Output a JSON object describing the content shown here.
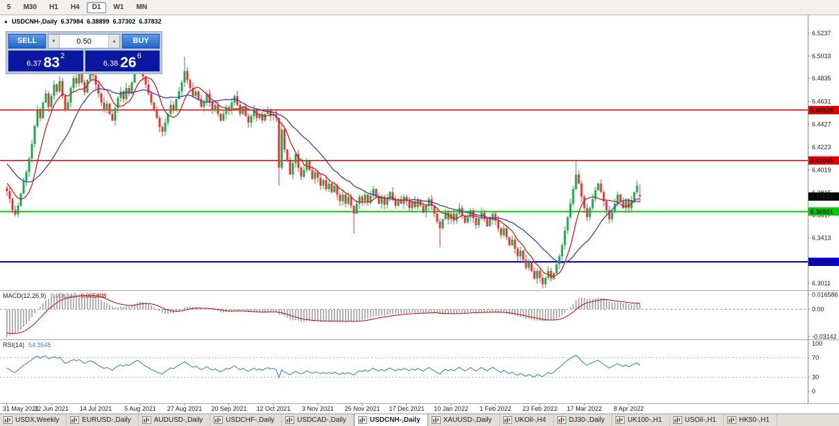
{
  "toolbar": {
    "timeframes": [
      {
        "label": "5",
        "active": false
      },
      {
        "label": "M30",
        "active": false
      },
      {
        "label": "H1",
        "active": false
      },
      {
        "label": "H4",
        "active": false
      },
      {
        "label": "D1",
        "active": true
      },
      {
        "label": "W1",
        "active": false
      },
      {
        "label": "MN",
        "active": false
      }
    ]
  },
  "chart_header": {
    "collapse_icon": "▲",
    "symbol": "USDCNH-,Daily",
    "open": "6.37984",
    "high": "6.38899",
    "low": "6.37302",
    "close": "6.37832"
  },
  "trade_panel": {
    "sell_label": "SELL",
    "buy_label": "BUY",
    "volume": "0.50",
    "spin_down_icon": "▼",
    "spin_up_icon": "▲",
    "sell_price": {
      "small": "6.37",
      "big": "83",
      "sup": "2"
    },
    "buy_price": {
      "small": "6.38",
      "big": "26",
      "sup": "6"
    }
  },
  "price_axis": {
    "ticks": [
      6.5237,
      6.5033,
      6.4835,
      6.4631,
      6.4427,
      6.4223,
      6.4019,
      6.3815,
      6.3617,
      6.3413,
      6.3209,
      6.3011
    ]
  },
  "levels": [
    {
      "value": 6.45528,
      "label": "6.45528",
      "color": "#e60000",
      "width": 1.4
    },
    {
      "value": 6.41045,
      "label": "6.41045",
      "color": "#e60000",
      "width": 1.4
    },
    {
      "value": 6.36501,
      "label": "6.36501",
      "color": "#00ce00",
      "width": 2
    },
    {
      "value": 6.32018,
      "label": "6.32018",
      "color": "#0000dd",
      "width": 1.6
    }
  ],
  "current_price": {
    "value": 6.37832,
    "label": "6.37832",
    "bg": "#000000"
  },
  "indicators": {
    "macd": {
      "label": "MACD(12,26,9)",
      "value": "0.006347",
      "signal_value": "0.005898",
      "axis_labels": [
        "0.016586",
        "0.00",
        "-0.03142"
      ],
      "axis_values": [
        0.016586,
        0,
        -0.03142
      ]
    },
    "rsi": {
      "label": "RSI(14)",
      "value": "54.3545",
      "axis_labels": [
        "100",
        "70",
        "30",
        "0"
      ],
      "axis_values": [
        100,
        70,
        30,
        0
      ],
      "level_lines": [
        70,
        30
      ]
    }
  },
  "x_axis": {
    "dates": [
      "31 May 2021",
      "22 Jun 2021",
      "14 Jul 2021",
      "5 Aug 2021",
      "27 Aug 2021",
      "20 Sep 2021",
      "12 Oct 2021",
      "3 Nov 2021",
      "25 Nov 2021",
      "17 Dec 2021",
      "10 Jan 2022",
      "1 Feb 2022",
      "23 Feb 2022",
      "17 Mar 2022",
      "8 Apr 2022"
    ]
  },
  "tabs": [
    {
      "label": "USDX,Weekly",
      "active": false
    },
    {
      "label": "EURUSD-,Daily",
      "active": false
    },
    {
      "label": "AUDUSD-,Daily",
      "active": false
    },
    {
      "label": "USDCHF-,Daily",
      "active": false
    },
    {
      "label": "USDCAD-,Daily",
      "active": false
    },
    {
      "label": "USDCNH-,Daily",
      "active": true
    },
    {
      "label": "XAUUSD-,Daily",
      "active": false
    },
    {
      "label": "UKOil-,H4",
      "active": false
    },
    {
      "label": "DJ30-,Daily",
      "active": false
    },
    {
      "label": "UK100-,H1",
      "active": false
    },
    {
      "label": "USOil-,H1",
      "active": false
    },
    {
      "label": "HK50-,H1",
      "active": false
    }
  ],
  "colors": {
    "up": "#18a94d",
    "down": "#e03636",
    "ma_fast": "#cf1d1d",
    "ma_slow": "#3a3ac0",
    "macd_hist": "#b2b2b2",
    "macd_signal": "#cc0000",
    "rsi_line": "#3d85c8",
    "grid": "#a8a8a8",
    "axis_line": "#8f8f8f",
    "trade_button": "#2e74d6",
    "price_panel": "#0a17a0"
  },
  "chart_data": {
    "type": "candlestick",
    "title": "USDCNH-,Daily",
    "symbol": "USDCNH-",
    "timeframe": "Daily",
    "ylim": [
      6.2955,
      6.5385
    ],
    "last_bar": {
      "open": 6.37984,
      "high": 6.38899,
      "low": 6.37302,
      "close": 6.37832
    },
    "first_open": 6.386,
    "closes": [
      6.383,
      6.3762,
      6.366,
      6.3625,
      6.37,
      6.381,
      6.392,
      6.4,
      6.412,
      6.425,
      6.441,
      6.455,
      6.448,
      6.462,
      6.47,
      6.458,
      6.468,
      6.478,
      6.472,
      6.481,
      6.468,
      6.455,
      6.462,
      6.475,
      6.484,
      6.479,
      6.488,
      6.48,
      6.471,
      6.482,
      6.49,
      6.486,
      6.478,
      6.47,
      6.462,
      6.455,
      6.461,
      6.452,
      6.446,
      6.457,
      6.466,
      6.472,
      6.465,
      6.475,
      6.47,
      6.48,
      6.492,
      6.501,
      6.495,
      6.485,
      6.478,
      6.47,
      6.462,
      6.455,
      6.448,
      6.44,
      6.436,
      6.444,
      6.452,
      6.46,
      6.455,
      6.465,
      6.472,
      6.48,
      6.49,
      6.482,
      6.475,
      6.468,
      6.472,
      6.465,
      6.458,
      6.463,
      6.47,
      6.462,
      6.455,
      6.46,
      6.452,
      6.446,
      6.452,
      6.458,
      6.455,
      6.462,
      6.468,
      6.46,
      6.452,
      6.458,
      6.45,
      6.444,
      6.45,
      6.456,
      6.448,
      6.452,
      6.446,
      6.452,
      6.455,
      6.45,
      6.452,
      6.448,
      6.404,
      6.438,
      6.42,
      6.41,
      6.398,
      6.408,
      6.416,
      6.404,
      6.396,
      6.402,
      6.41,
      6.402,
      6.394,
      6.4,
      6.395,
      6.388,
      6.393,
      6.385,
      6.39,
      6.382,
      6.388,
      6.38,
      6.374,
      6.38,
      6.372,
      6.378,
      6.37,
      6.363,
      6.372,
      6.378,
      6.374,
      6.38,
      6.373,
      6.379,
      6.385,
      6.378,
      6.372,
      6.378,
      6.371,
      6.377,
      6.382,
      6.376,
      6.37,
      6.376,
      6.372,
      6.378,
      6.374,
      6.368,
      6.374,
      6.369,
      6.375,
      6.37,
      6.364,
      6.37,
      6.376,
      6.37,
      6.363,
      6.356,
      6.35,
      6.358,
      6.364,
      6.358,
      6.363,
      6.357,
      6.363,
      6.368,
      6.361,
      6.355,
      6.36,
      6.366,
      6.359,
      6.353,
      6.359,
      6.364,
      6.358,
      6.352,
      6.358,
      6.363,
      6.357,
      6.35,
      6.344,
      6.35,
      6.342,
      6.335,
      6.34,
      6.332,
      6.325,
      6.33,
      6.322,
      6.315,
      6.32,
      6.312,
      6.305,
      6.312,
      6.306,
      6.3,
      6.306,
      6.312,
      6.305,
      6.31,
      6.318,
      6.325,
      6.335,
      6.348,
      6.36,
      6.372,
      6.385,
      6.398,
      6.39,
      6.378,
      6.368,
      6.36,
      6.368,
      6.376,
      6.384,
      6.39,
      6.382,
      6.374,
      6.366,
      6.358,
      6.365,
      6.372,
      6.38,
      6.374,
      6.368,
      6.375,
      6.368,
      6.375,
      6.382,
      6.388,
      6.3783
    ],
    "wick_up_pattern": [
      0.002,
      0.0038,
      0.0012,
      0.0045,
      0.0028,
      0.0008,
      0.0035,
      0.0022
    ],
    "wick_dn_pattern": [
      0.003,
      0.001,
      0.0042,
      0.0018,
      0.0006,
      0.0036,
      0.0025,
      0.0045
    ],
    "special_bars": {
      "46": {
        "h": 6.503
      },
      "47": {
        "h": 6.5055
      },
      "64": {
        "h": 6.503
      },
      "98": {
        "l": 6.388
      },
      "99": {
        "h": 6.445
      },
      "125": {
        "l": 6.345
      },
      "156": {
        "l": 6.333
      },
      "193": {
        "l": 6.2965
      },
      "205": {
        "h": 6.41
      },
      "228": {
        "o": 6.37984,
        "h": 6.38899,
        "l": 6.37302,
        "c": 6.37832
      }
    },
    "ma_fast_period": 8,
    "ma_slow_period": 21,
    "ma_pad_start": 6.445,
    "ma_pad_len": 24,
    "macd_params": [
      12,
      26,
      9
    ],
    "macd_seed": {
      "ema12": 6.379,
      "ema26": 6.414,
      "signal": -0.026
    },
    "rsi_period": 14,
    "rsi_seed": {
      "avg_gain": 0.004,
      "avg_loss": 0.004
    }
  }
}
